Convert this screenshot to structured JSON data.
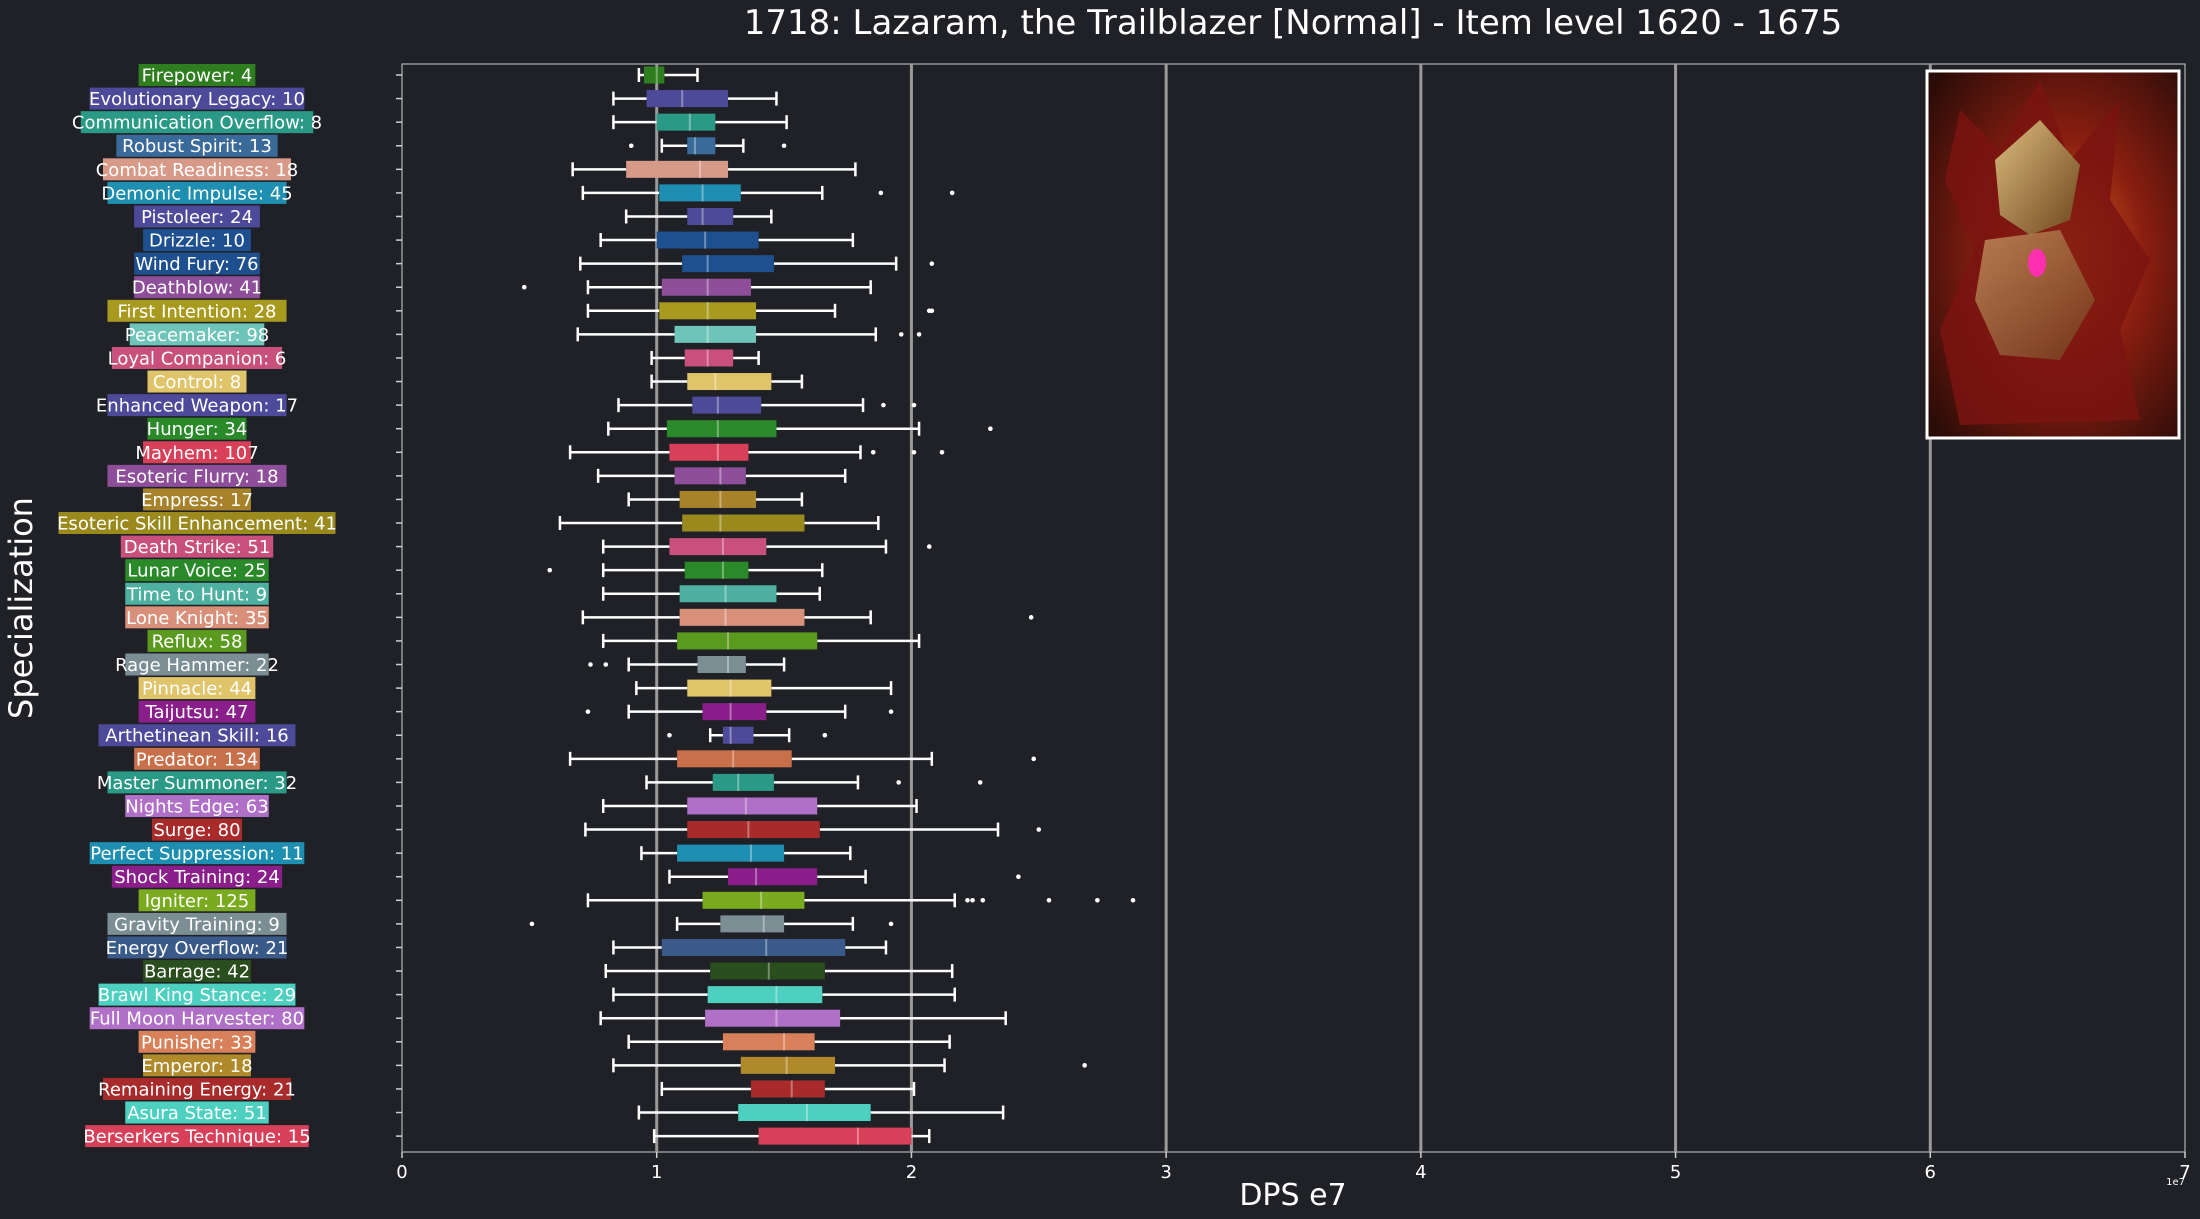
{
  "chart_data": {
    "type": "box",
    "title": "1718: Lazaram, the Trailblazer [Normal] - Item level 1620 - 1675",
    "xlabel": "DPS e7",
    "ylabel": "Specialization",
    "x_scale_note": "1e7",
    "xlim": [
      0,
      7
    ],
    "xticks": [
      0,
      1,
      2,
      3,
      4,
      5,
      6,
      7
    ],
    "grid": "vertical",
    "series": [
      {
        "label": "Firepower: 4",
        "color": "#2e7d1e",
        "whisker_low": 0.93,
        "q1": 0.95,
        "median": 1.0,
        "q3": 1.03,
        "whisker_high": 1.16,
        "outliers": []
      },
      {
        "label": "Evolutionary Legacy: 10",
        "color": "#4e4a9a",
        "whisker_low": 0.83,
        "q1": 0.96,
        "median": 1.1,
        "q3": 1.28,
        "whisker_high": 1.47,
        "outliers": []
      },
      {
        "label": "Communication Overflow: 8",
        "color": "#2a9a86",
        "whisker_low": 0.83,
        "q1": 1.0,
        "median": 1.13,
        "q3": 1.23,
        "whisker_high": 1.51,
        "outliers": []
      },
      {
        "label": "Robust Spirit: 13",
        "color": "#3a6a9a",
        "whisker_low": 1.02,
        "q1": 1.12,
        "median": 1.15,
        "q3": 1.23,
        "whisker_high": 1.34,
        "outliers": [
          0.9,
          1.5
        ]
      },
      {
        "label": "Combat Readiness: 18",
        "color": "#d89a88",
        "whisker_low": 0.67,
        "q1": 0.88,
        "median": 1.17,
        "q3": 1.28,
        "whisker_high": 1.78,
        "outliers": []
      },
      {
        "label": "Demonic Impulse: 45",
        "color": "#1e8fb0",
        "whisker_low": 0.71,
        "q1": 1.01,
        "median": 1.18,
        "q3": 1.33,
        "whisker_high": 1.65,
        "outliers": [
          1.88,
          2.16
        ]
      },
      {
        "label": "Pistoleer: 24",
        "color": "#4e4a9a",
        "whisker_low": 0.88,
        "q1": 1.12,
        "median": 1.18,
        "q3": 1.3,
        "whisker_high": 1.45,
        "outliers": []
      },
      {
        "label": "Drizzle: 10",
        "color": "#1e4f8f",
        "whisker_low": 0.78,
        "q1": 1.0,
        "median": 1.19,
        "q3": 1.4,
        "whisker_high": 1.77,
        "outliers": []
      },
      {
        "label": "Wind Fury: 76",
        "color": "#1e4f8f",
        "whisker_low": 0.7,
        "q1": 1.1,
        "median": 1.2,
        "q3": 1.46,
        "whisker_high": 1.94,
        "outliers": [
          2.08
        ]
      },
      {
        "label": "Deathblow: 41",
        "color": "#8e4e9a",
        "whisker_low": 0.73,
        "q1": 1.02,
        "median": 1.2,
        "q3": 1.37,
        "whisker_high": 1.84,
        "outliers": [
          0.48
        ]
      },
      {
        "label": "First Intention: 28",
        "color": "#a89a1e",
        "whisker_low": 0.73,
        "q1": 1.01,
        "median": 1.2,
        "q3": 1.39,
        "whisker_high": 1.7,
        "outliers": [
          2.07,
          2.08
        ]
      },
      {
        "label": "Peacemaker: 98",
        "color": "#6ec4b8",
        "whisker_low": 0.69,
        "q1": 1.07,
        "median": 1.2,
        "q3": 1.39,
        "whisker_high": 1.86,
        "outliers": [
          1.96,
          2.03
        ]
      },
      {
        "label": "Loyal Companion: 6",
        "color": "#c8507a",
        "whisker_low": 0.98,
        "q1": 1.11,
        "median": 1.2,
        "q3": 1.3,
        "whisker_high": 1.4,
        "outliers": []
      },
      {
        "label": "Control: 8",
        "color": "#e0c46a",
        "whisker_low": 0.98,
        "q1": 1.12,
        "median": 1.23,
        "q3": 1.45,
        "whisker_high": 1.57,
        "outliers": []
      },
      {
        "label": "Enhanced Weapon: 17",
        "color": "#4e4a9a",
        "whisker_low": 0.85,
        "q1": 1.14,
        "median": 1.24,
        "q3": 1.41,
        "whisker_high": 1.81,
        "outliers": [
          1.89,
          2.01
        ]
      },
      {
        "label": "Hunger: 34",
        "color": "#2a8a2a",
        "whisker_low": 0.81,
        "q1": 1.04,
        "median": 1.24,
        "q3": 1.47,
        "whisker_high": 2.03,
        "outliers": [
          2.31
        ]
      },
      {
        "label": "Mayhem: 107",
        "color": "#d8405a",
        "whisker_low": 0.66,
        "q1": 1.05,
        "median": 1.24,
        "q3": 1.36,
        "whisker_high": 1.8,
        "outliers": [
          1.85,
          2.01,
          2.12
        ]
      },
      {
        "label": "Esoteric Flurry: 18",
        "color": "#8e4e9a",
        "whisker_low": 0.77,
        "q1": 1.07,
        "median": 1.25,
        "q3": 1.35,
        "whisker_high": 1.74,
        "outliers": []
      },
      {
        "label": "Empress: 17",
        "color": "#a8822a",
        "whisker_low": 0.89,
        "q1": 1.09,
        "median": 1.25,
        "q3": 1.39,
        "whisker_high": 1.57,
        "outliers": []
      },
      {
        "label": "Esoteric Skill Enhancement: 41",
        "color": "#9a8a1e",
        "whisker_low": 0.62,
        "q1": 1.1,
        "median": 1.25,
        "q3": 1.58,
        "whisker_high": 1.87,
        "outliers": []
      },
      {
        "label": "Death Strike: 51",
        "color": "#c8507a",
        "whisker_low": 0.79,
        "q1": 1.05,
        "median": 1.26,
        "q3": 1.43,
        "whisker_high": 1.9,
        "outliers": [
          2.07
        ]
      },
      {
        "label": "Lunar Voice: 25",
        "color": "#2a8a2a",
        "whisker_low": 0.79,
        "q1": 1.11,
        "median": 1.26,
        "q3": 1.36,
        "whisker_high": 1.65,
        "outliers": [
          0.58
        ]
      },
      {
        "label": "Time to Hunt: 9",
        "color": "#4eb0a0",
        "whisker_low": 0.79,
        "q1": 1.09,
        "median": 1.27,
        "q3": 1.47,
        "whisker_high": 1.64,
        "outliers": []
      },
      {
        "label": "Lone Knight: 35",
        "color": "#d8907a",
        "whisker_low": 0.71,
        "q1": 1.09,
        "median": 1.27,
        "q3": 1.58,
        "whisker_high": 1.84,
        "outliers": [
          2.47
        ]
      },
      {
        "label": "Reflux: 58",
        "color": "#5a9a1e",
        "whisker_low": 0.79,
        "q1": 1.08,
        "median": 1.28,
        "q3": 1.63,
        "whisker_high": 2.03,
        "outliers": []
      },
      {
        "label": "Rage Hammer: 22",
        "color": "#7a8e94",
        "whisker_low": 0.89,
        "q1": 1.16,
        "median": 1.28,
        "q3": 1.35,
        "whisker_high": 1.5,
        "outliers": [
          0.74,
          0.8
        ]
      },
      {
        "label": "Pinnacle: 44",
        "color": "#e0c46a",
        "whisker_low": 0.92,
        "q1": 1.12,
        "median": 1.29,
        "q3": 1.45,
        "whisker_high": 1.92,
        "outliers": []
      },
      {
        "label": "Taijutsu: 47",
        "color": "#8a1e8a",
        "whisker_low": 0.89,
        "q1": 1.18,
        "median": 1.29,
        "q3": 1.43,
        "whisker_high": 1.74,
        "outliers": [
          0.73,
          1.92
        ]
      },
      {
        "label": "Arthetinean Skill: 16",
        "color": "#4e4a9a",
        "whisker_low": 1.21,
        "q1": 1.26,
        "median": 1.29,
        "q3": 1.38,
        "whisker_high": 1.52,
        "outliers": [
          1.05,
          1.66
        ]
      },
      {
        "label": "Predator: 134",
        "color": "#c8704a",
        "whisker_low": 0.66,
        "q1": 1.08,
        "median": 1.3,
        "q3": 1.53,
        "whisker_high": 2.08,
        "outliers": [
          2.48
        ]
      },
      {
        "label": "Master Summoner: 32",
        "color": "#2a9a86",
        "whisker_low": 0.96,
        "q1": 1.22,
        "median": 1.32,
        "q3": 1.46,
        "whisker_high": 1.79,
        "outliers": [
          1.95,
          2.27
        ]
      },
      {
        "label": "Nights Edge: 63",
        "color": "#b070c8",
        "whisker_low": 0.79,
        "q1": 1.12,
        "median": 1.35,
        "q3": 1.63,
        "whisker_high": 2.02,
        "outliers": []
      },
      {
        "label": "Surge: 80",
        "color": "#a82a2a",
        "whisker_low": 0.72,
        "q1": 1.12,
        "median": 1.36,
        "q3": 1.64,
        "whisker_high": 2.34,
        "outliers": [
          2.5
        ]
      },
      {
        "label": "Perfect Suppression: 11",
        "color": "#1e8fb0",
        "whisker_low": 0.94,
        "q1": 1.08,
        "median": 1.37,
        "q3": 1.5,
        "whisker_high": 1.76,
        "outliers": []
      },
      {
        "label": "Shock Training: 24",
        "color": "#8a1e8a",
        "whisker_low": 1.05,
        "q1": 1.28,
        "median": 1.39,
        "q3": 1.63,
        "whisker_high": 1.82,
        "outliers": [
          2.42
        ]
      },
      {
        "label": "Igniter: 125",
        "color": "#7aaa1e",
        "whisker_low": 0.73,
        "q1": 1.18,
        "median": 1.41,
        "q3": 1.58,
        "whisker_high": 2.17,
        "outliers": [
          2.22,
          2.24,
          2.28,
          2.54,
          2.73,
          2.87
        ]
      },
      {
        "label": "Gravity Training: 9",
        "color": "#7a8e94",
        "whisker_low": 1.08,
        "q1": 1.25,
        "median": 1.42,
        "q3": 1.5,
        "whisker_high": 1.77,
        "outliers": [
          0.51,
          1.92
        ]
      },
      {
        "label": "Energy Overflow: 21",
        "color": "#3a5a8a",
        "whisker_low": 0.83,
        "q1": 1.02,
        "median": 1.43,
        "q3": 1.74,
        "whisker_high": 1.9,
        "outliers": []
      },
      {
        "label": "Barrage: 42",
        "color": "#2a4e1e",
        "whisker_low": 0.8,
        "q1": 1.21,
        "median": 1.44,
        "q3": 1.66,
        "whisker_high": 2.16,
        "outliers": []
      },
      {
        "label": "Brawl King Stance: 29",
        "color": "#4ed0c0",
        "whisker_low": 0.83,
        "q1": 1.2,
        "median": 1.47,
        "q3": 1.65,
        "whisker_high": 2.17,
        "outliers": []
      },
      {
        "label": "Full Moon Harvester: 80",
        "color": "#b070c8",
        "whisker_low": 0.78,
        "q1": 1.19,
        "median": 1.47,
        "q3": 1.72,
        "whisker_high": 2.37,
        "outliers": []
      },
      {
        "label": "Punisher: 33",
        "color": "#d8805a",
        "whisker_low": 0.89,
        "q1": 1.26,
        "median": 1.5,
        "q3": 1.62,
        "whisker_high": 2.15,
        "outliers": []
      },
      {
        "label": "Emperor: 18",
        "color": "#b08a2a",
        "whisker_low": 0.83,
        "q1": 1.33,
        "median": 1.51,
        "q3": 1.7,
        "whisker_high": 2.13,
        "outliers": [
          2.68
        ]
      },
      {
        "label": "Remaining Energy: 21",
        "color": "#a82a2a",
        "whisker_low": 1.02,
        "q1": 1.37,
        "median": 1.53,
        "q3": 1.66,
        "whisker_high": 2.01,
        "outliers": []
      },
      {
        "label": "Asura State: 51",
        "color": "#4ed0c0",
        "whisker_low": 0.93,
        "q1": 1.32,
        "median": 1.59,
        "q3": 1.84,
        "whisker_high": 2.36,
        "outliers": []
      },
      {
        "label": "Berserkers Technique: 15",
        "color": "#d8405a",
        "whisker_low": 0.99,
        "q1": 1.4,
        "median": 1.79,
        "q3": 2.0,
        "whisker_high": 2.07,
        "outliers": []
      }
    ]
  }
}
